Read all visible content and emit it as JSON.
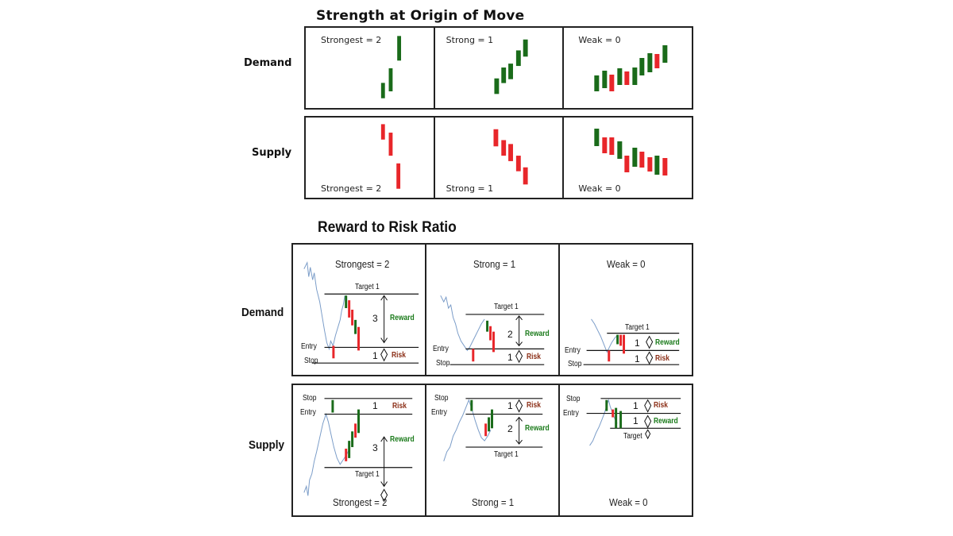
{
  "colors": {
    "bull": "#1a6b1a",
    "bear": "#e8262a",
    "price_line": "#7a9cc8",
    "border": "#222222",
    "reward": "#1a7a1a",
    "risk": "#8b2e16"
  },
  "strength": {
    "title": "Strength at Origin of Move",
    "rows": [
      "Demand",
      "Supply"
    ],
    "demand_cells": [
      "Strongest = 2",
      "Strong = 1",
      "Weak = 0"
    ],
    "supply_cells": [
      "Strongest = 2",
      "Strong = 1",
      "Weak = 0"
    ]
  },
  "rr": {
    "title": "Reward to Risk Ratio",
    "rows": [
      "Demand",
      "Supply"
    ],
    "demand_cells": [
      {
        "label": "Strongest = 2",
        "target": "Target 1",
        "entry": "Entry",
        "stop": "Stop",
        "reward_num": "3",
        "risk_num": "1",
        "reward": "Reward",
        "risk": "Risk"
      },
      {
        "label": "Strong = 1",
        "target": "Target 1",
        "entry": "Entry",
        "stop": "Stop",
        "reward_num": "2",
        "risk_num": "1",
        "reward": "Reward",
        "risk": "Risk"
      },
      {
        "label": "Weak = 0",
        "target": "Target 1",
        "entry": "Entry",
        "stop": "Stop",
        "reward_num": "1",
        "risk_num": "1",
        "reward": "Reward",
        "risk": "Risk"
      }
    ],
    "supply_cells": [
      {
        "label": "Strongest = 2",
        "target": "Target 1",
        "entry": "Entry",
        "stop": "Stop",
        "reward_num": "3",
        "risk_num": "1",
        "reward": "Reward",
        "risk": "Risk"
      },
      {
        "label": "Strong = 1",
        "target": "Target 1",
        "entry": "Entry",
        "stop": "Stop",
        "reward_num": "2",
        "risk_num": "1",
        "reward": "Reward",
        "risk": "Risk"
      },
      {
        "label": "Weak = 0",
        "target": "Target",
        "entry": "Entry",
        "stop": "Stop",
        "reward_num": "1",
        "risk_num": "1",
        "reward": "Reward",
        "risk": "Risk"
      }
    ]
  }
}
